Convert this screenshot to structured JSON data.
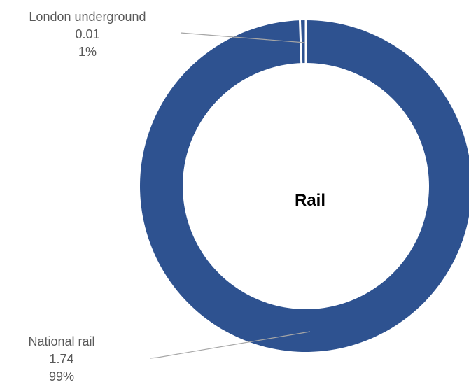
{
  "chart_data": {
    "type": "pie",
    "variant": "donut",
    "center_label": "Rail",
    "slices": [
      {
        "name": "London underground",
        "value_label": "0.01",
        "percent_label": "1%",
        "value": 0.01,
        "color": "#2E5290"
      },
      {
        "name": "National rail",
        "value_label": "1.74",
        "percent_label": "99%",
        "value": 1.74,
        "color": "#2E5290"
      }
    ],
    "separator_color": "#ffffff",
    "leader_line_color": "#A6A6A6",
    "legend": "none"
  }
}
